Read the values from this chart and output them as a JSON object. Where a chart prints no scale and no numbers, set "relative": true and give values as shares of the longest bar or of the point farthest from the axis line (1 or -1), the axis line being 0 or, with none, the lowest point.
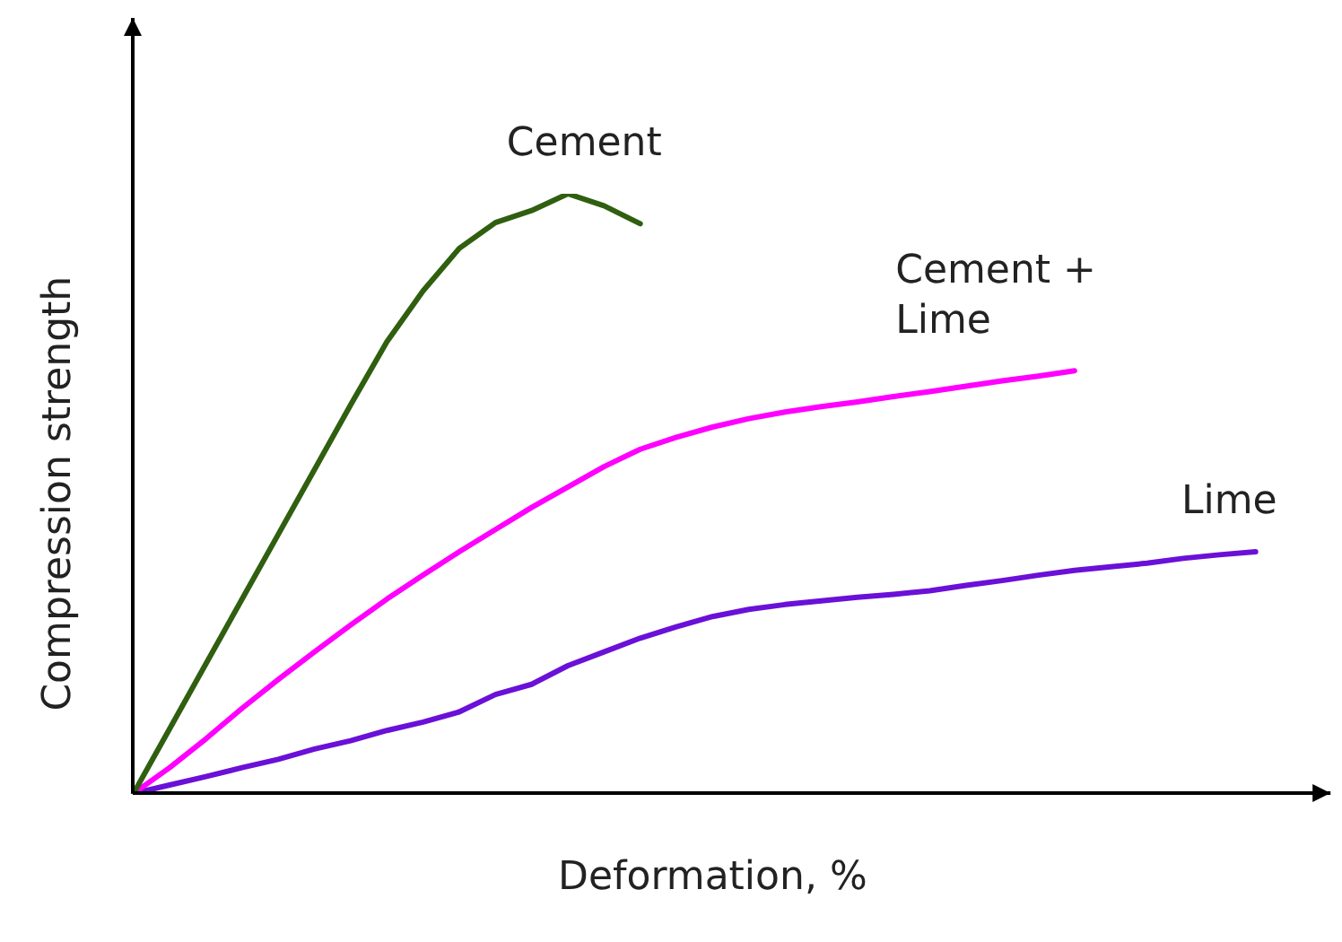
{
  "chart_data": {
    "type": "line",
    "relative": true,
    "xlabel": "Deformation, %",
    "ylabel": "Compression strength",
    "grid": false,
    "legend": false,
    "marker": "none",
    "line_style": "solid",
    "categories": [
      null,
      null,
      null,
      null,
      null,
      null,
      null,
      null,
      null,
      null,
      null,
      null,
      null,
      null,
      null,
      null,
      null,
      null,
      null,
      null,
      null,
      null,
      null,
      null,
      null,
      null,
      null,
      null,
      null,
      null,
      null,
      null,
      null
    ],
    "series": [
      {
        "name": "Cement",
        "color": "#2f5f0f",
        "values": [
          0,
          0.108,
          0.216,
          0.324,
          0.432,
          0.54,
          0.648,
          0.753,
          0.838,
          0.909,
          0.952,
          0.972,
          1,
          0.98,
          0.95,
          null,
          null,
          null,
          null,
          null,
          null,
          null,
          null,
          null,
          null,
          null,
          null,
          null,
          null,
          null,
          null,
          null,
          null
        ]
      },
      {
        "name": "Cement + Lime",
        "color": "#ff00ff",
        "values": [
          0,
          0.043,
          0.091,
          0.142,
          0.19,
          0.236,
          0.281,
          0.324,
          0.364,
          0.403,
          0.44,
          0.477,
          0.511,
          0.545,
          0.574,
          0.594,
          0.611,
          0.625,
          0.636,
          0.645,
          0.653,
          0.662,
          0.67,
          0.679,
          0.688,
          0.696,
          0.705,
          null,
          null,
          null,
          null,
          null,
          null
        ]
      },
      {
        "name": "Lime",
        "color": "#6a10d8",
        "values": [
          0,
          0.014,
          0.028,
          0.043,
          0.057,
          0.074,
          0.088,
          0.105,
          0.119,
          0.136,
          0.165,
          0.182,
          0.213,
          0.236,
          0.259,
          0.278,
          0.295,
          0.307,
          0.315,
          0.321,
          0.327,
          0.332,
          0.338,
          0.347,
          0.355,
          0.364,
          0.372,
          0.378,
          0.384,
          0.392,
          0.398,
          0.403,
          null
        ]
      }
    ]
  }
}
